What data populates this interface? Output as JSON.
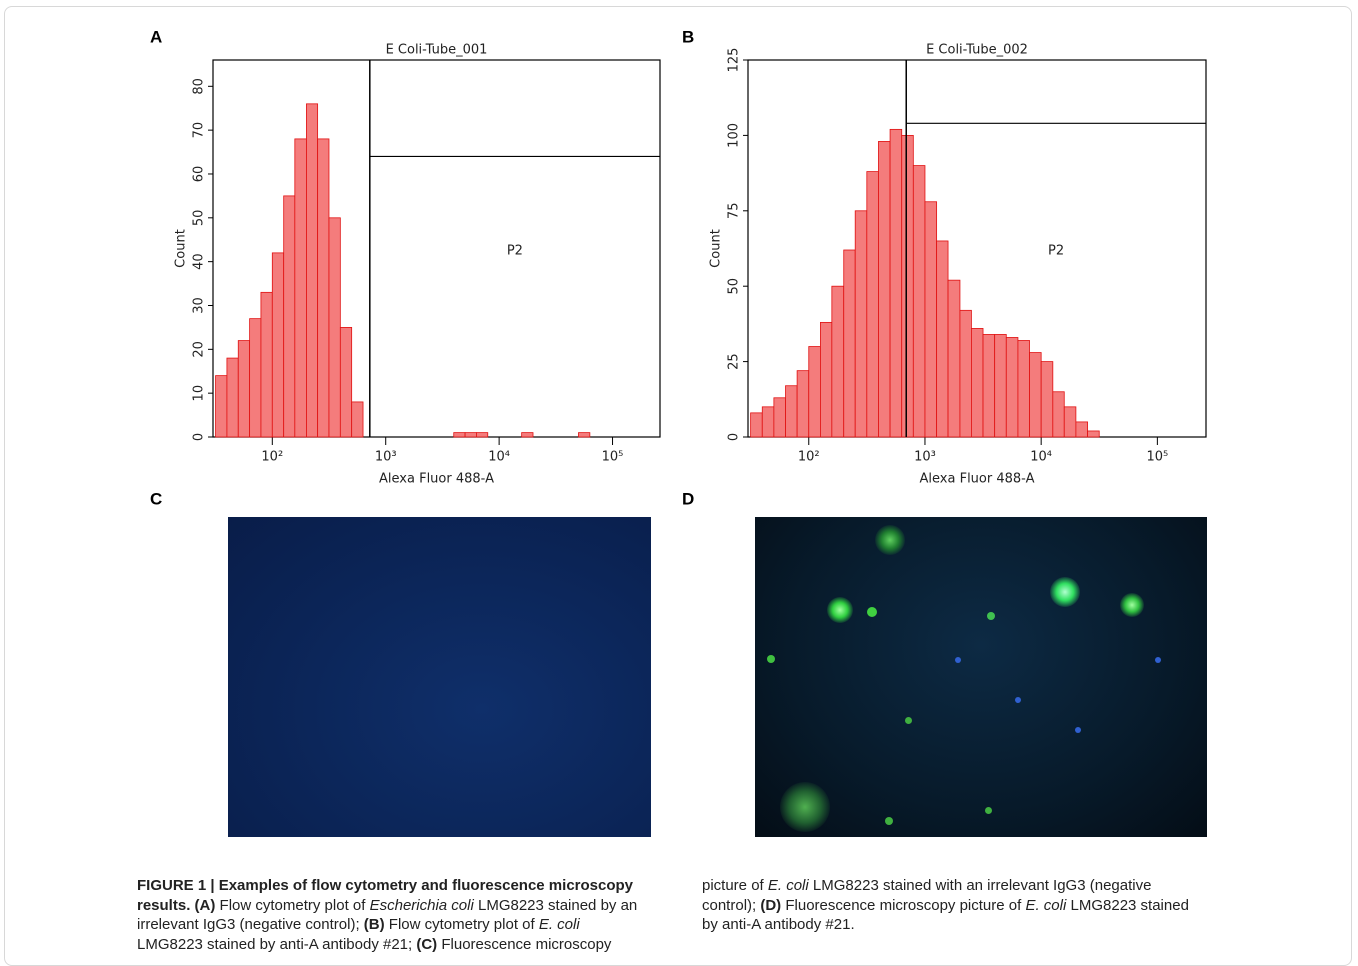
{
  "panel_labels": [
    "A",
    "B",
    "C",
    "D"
  ],
  "chart_data": [
    {
      "type": "histogram",
      "title": "E Coli-Tube_001",
      "x_label": "Alexa Fluor 488-A",
      "y_label": "Count",
      "log_x": true,
      "color": "#f47c7c",
      "edge_color": "#e01010",
      "xlim": [
        30,
        262144
      ],
      "xticks": [
        {
          "value": 100,
          "label": "10²"
        },
        {
          "value": 1000,
          "label": "10³"
        },
        {
          "value": 10000,
          "label": "10⁴"
        },
        {
          "value": 100000,
          "label": "10⁵"
        }
      ],
      "ylim": [
        0,
        86
      ],
      "yticks": [
        0,
        10,
        20,
        30,
        40,
        50,
        60,
        70,
        80
      ],
      "bins": [
        31.6,
        39.8,
        50.1,
        63.1,
        79.4,
        100,
        126,
        158,
        200,
        251,
        316,
        398,
        501,
        631,
        794,
        1000,
        1260,
        1580,
        2000,
        2510,
        3160,
        3980,
        5010,
        6310,
        7940,
        10000,
        12600,
        15800,
        19900,
        25100,
        31600,
        39800,
        50100,
        63100,
        79400,
        100000,
        126000,
        158000,
        200000,
        251000
      ],
      "values": [
        14,
        18,
        22,
        27,
        33,
        42,
        55,
        68,
        76,
        68,
        50,
        25,
        8,
        0,
        0,
        0,
        0,
        0,
        0,
        0,
        0,
        1,
        1,
        1,
        0,
        0,
        0,
        1,
        0,
        0,
        0,
        0,
        1,
        0,
        0,
        0,
        0,
        0,
        0
      ],
      "gate": {
        "name": "P2",
        "x": 724,
        "y": 64
      }
    },
    {
      "type": "histogram",
      "title": "E Coli-Tube_002",
      "x_label": "Alexa Fluor 488-A",
      "y_label": "Count",
      "log_x": true,
      "color": "#f47c7c",
      "edge_color": "#e01010",
      "xlim": [
        30,
        262144
      ],
      "xticks": [
        {
          "value": 100,
          "label": "10²"
        },
        {
          "value": 1000,
          "label": "10³"
        },
        {
          "value": 10000,
          "label": "10⁴"
        },
        {
          "value": 100000,
          "label": "10⁵"
        }
      ],
      "ylim": [
        0,
        125
      ],
      "yticks": [
        0,
        25,
        50,
        75,
        100,
        125
      ],
      "bins": [
        31.6,
        39.8,
        50.1,
        63.1,
        79.4,
        100,
        126,
        158,
        200,
        251,
        316,
        398,
        501,
        631,
        794,
        1000,
        1260,
        1580,
        2000,
        2510,
        3160,
        3980,
        5010,
        6310,
        7940,
        10000,
        12600,
        15800,
        19900,
        25100,
        31600,
        39800,
        50100,
        63100,
        79400,
        100000,
        126000,
        158000,
        200000,
        251000
      ],
      "values": [
        8,
        10,
        13,
        17,
        22,
        30,
        38,
        50,
        62,
        75,
        88,
        98,
        102,
        100,
        90,
        78,
        65,
        52,
        42,
        36,
        34,
        34,
        33,
        32,
        28,
        25,
        15,
        10,
        5,
        2,
        0,
        0,
        0,
        0,
        0,
        0,
        0,
        0,
        0
      ],
      "gate": {
        "name": "P2",
        "x": 690,
        "y": 104
      }
    }
  ],
  "caption": [
    {
      "text": "FIGURE 1 | Examples of flow cytometry and fluorescence microscopy results.",
      "style": "bold"
    },
    {
      "text": "(A)",
      "style": "bold"
    },
    {
      "text": "Flow cytometry plot of",
      "style": "normal"
    },
    {
      "text": "Escherichia coli",
      "style": "italic"
    },
    {
      "text": "LMG8223 stained by an irrelevant IgG3 (negative control);",
      "style": "normal"
    },
    {
      "text": "(B)",
      "style": "bold"
    },
    {
      "text": "Flow cytometry plot of",
      "style": "normal"
    },
    {
      "text": "E. coli",
      "style": "italic"
    },
    {
      "text": "LMG8223 stained by anti-A antibody #21;",
      "style": "normal"
    },
    {
      "text": "(C)",
      "style": "bold"
    },
    {
      "text": "Fluorescence microscopy picture of",
      "style": "normal"
    },
    {
      "text": "E. coli",
      "style": "italic"
    },
    {
      "text": "LMG8223 stained with an irrelevant IgG3 (negative control);",
      "style": "normal"
    },
    {
      "text": "(D)",
      "style": "bold"
    },
    {
      "text": "Fluorescence microscopy picture of",
      "style": "normal"
    },
    {
      "text": "E. coli",
      "style": "italic"
    },
    {
      "text": "LMG8223 stained by anti-A antibody #21.",
      "style": "normal"
    }
  ]
}
